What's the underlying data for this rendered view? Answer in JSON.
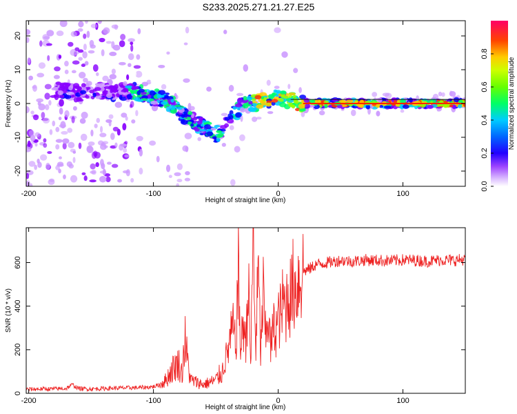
{
  "title": "S233.2025.271.21.27.E25",
  "chart_data": [
    {
      "type": "heatmap",
      "title": "S233.2025.271.21.27.E25",
      "xlabel": "Height of straight line (km)",
      "ylabel": "Frequency (Hz)",
      "xlim": [
        -202,
        150
      ],
      "ylim": [
        -24.5,
        24.5
      ],
      "x_ticks": [
        -200,
        -100,
        0,
        100
      ],
      "y_ticks": [
        -20,
        -10,
        0,
        10,
        20
      ],
      "colorbar": {
        "label": "Normalized spectral amplitude",
        "range": [
          0.0,
          1.0
        ],
        "ticks": [
          0.0,
          0.2,
          0.4,
          0.6,
          0.8
        ],
        "tick_labels": [
          "0.0",
          "0.2",
          "0.4",
          "0.6",
          "0.8"
        ],
        "colors": [
          "#ffffff",
          "#cc99ff",
          "#8800ff",
          "#0000ff",
          "#00ccff",
          "#00ff66",
          "#99ff00",
          "#ffcc00",
          "#ff3300",
          "#ff0066"
        ]
      },
      "ridge": {
        "x": [
          -175,
          -160,
          -145,
          -130,
          -120,
          -110,
          -100,
          -90,
          -80,
          -70,
          -60,
          -50,
          -45,
          -40,
          -35,
          -30,
          -25,
          -20,
          -10,
          0,
          10,
          20,
          40,
          60,
          80,
          100,
          120,
          150
        ],
        "y": [
          4,
          3,
          4,
          3,
          4,
          3,
          2,
          1,
          -2,
          -5,
          -7,
          -9,
          -8,
          -5,
          -3,
          -1,
          0,
          0,
          1,
          2,
          1,
          0,
          0,
          0,
          0,
          0,
          0,
          0
        ]
      }
    },
    {
      "type": "line",
      "xlabel": "Height of straight line (km)",
      "ylabel": "SNR (10 * v/v)",
      "xlim": [
        -202,
        150
      ],
      "ylim": [
        0,
        760
      ],
      "x_ticks": [
        -200,
        -100,
        0,
        100
      ],
      "y_ticks": [
        0,
        200,
        400,
        600
      ],
      "series": [
        {
          "name": "SNR",
          "color": "#ee2222",
          "x": [
            -202,
            -190,
            -180,
            -170,
            -165,
            -160,
            -150,
            -140,
            -130,
            -120,
            -110,
            -100,
            -95,
            -90,
            -85,
            -80,
            -77,
            -75,
            -72,
            -70,
            -65,
            -60,
            -55,
            -50,
            -45,
            -42,
            -40,
            -38,
            -36,
            -34,
            -32,
            -30,
            -28,
            -26,
            -24,
            -22,
            -20,
            -19,
            -18,
            -16,
            -14,
            -12,
            -10,
            -8,
            -6,
            -4,
            -2,
            0,
            2,
            4,
            6,
            8,
            10,
            12,
            14,
            16,
            18,
            20,
            25,
            30,
            40,
            50,
            60,
            70,
            80,
            90,
            100,
            110,
            120,
            130,
            140,
            150
          ],
          "y": [
            18,
            20,
            20,
            22,
            40,
            22,
            20,
            22,
            24,
            25,
            26,
            30,
            40,
            60,
            110,
            140,
            90,
            250,
            120,
            60,
            50,
            40,
            50,
            60,
            100,
            160,
            200,
            260,
            300,
            200,
            560,
            180,
            340,
            220,
            520,
            120,
            740,
            420,
            200,
            560,
            180,
            460,
            240,
            380,
            200,
            300,
            290,
            340,
            360,
            420,
            390,
            470,
            440,
            500,
            480,
            520,
            540,
            560,
            570,
            590,
            600,
            610,
            605,
            612,
            610,
            608,
            612,
            610,
            606,
            612,
            610,
            615
          ]
        }
      ]
    }
  ]
}
